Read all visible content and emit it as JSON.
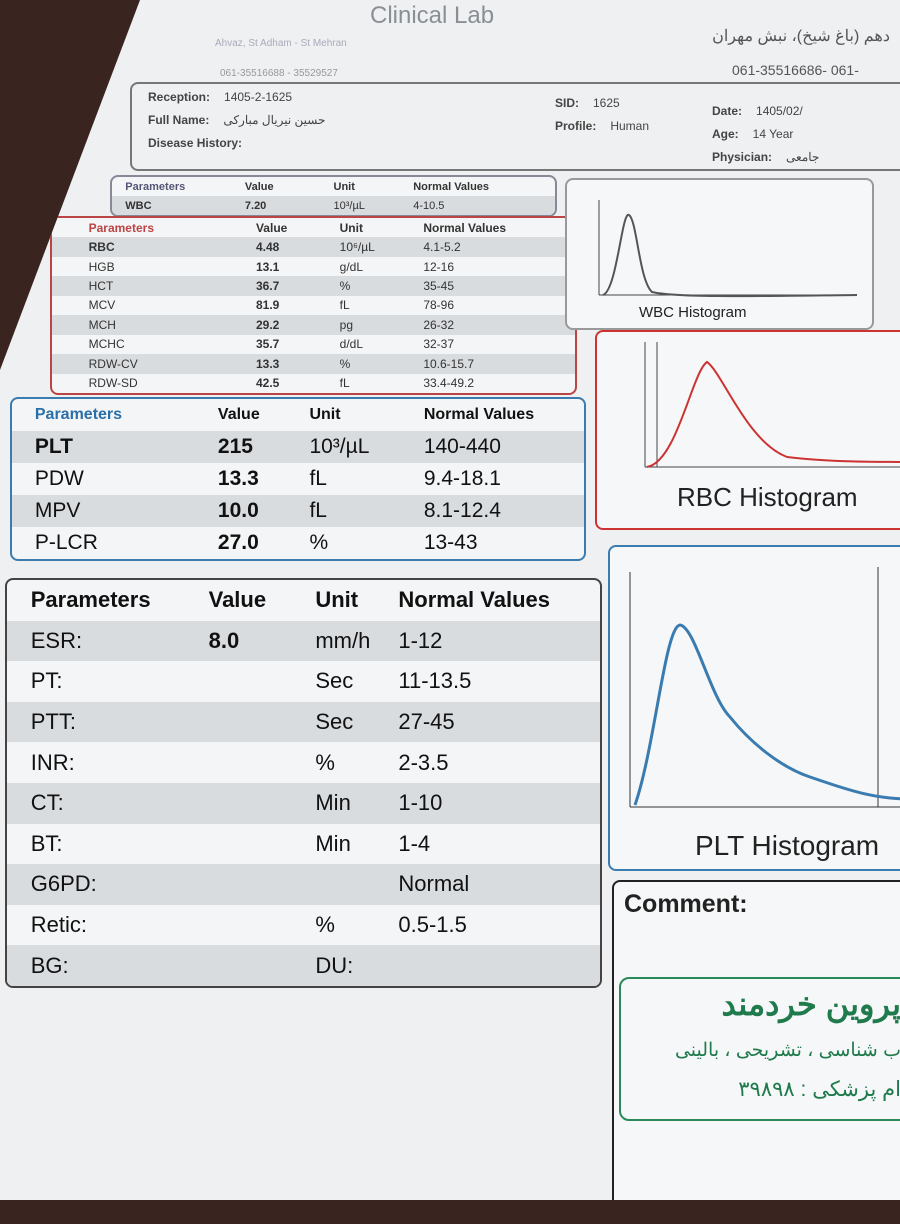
{
  "header": {
    "lab_name": "Clinical Lab",
    "address": "Ahvaz, St Adham - St Mehran",
    "phones": "061-35516688 - 35529527",
    "address_fa": "دهم (باغ شیخ)، نبش مهران",
    "phones_right": "061-35516686- 061-"
  },
  "patient": {
    "left": [
      {
        "label": "Reception:",
        "value": "1405-2-1625"
      },
      {
        "label": "Full Name:",
        "value": "حسین نیریال مبارکی"
      },
      {
        "label": "Disease History:"
      }
    ],
    "middle": [
      {
        "label": "SID:",
        "value": "1625"
      },
      {
        "label": "Profile:",
        "value": "Human"
      }
    ],
    "right": [
      {
        "label": "Date:",
        "value": "1405/02/"
      },
      {
        "label": "Age:",
        "value": "14 Year"
      },
      {
        "label": "Physician:",
        "value": "جامعی"
      }
    ]
  },
  "tables": [
    {
      "headers": [
        "Parameters",
        "Value",
        "Unit",
        "Normal Values"
      ],
      "rows": [
        [
          "WBC",
          "7.20",
          "10³/µL",
          "4-10.5"
        ]
      ]
    },
    {
      "headers": [
        "Parameters",
        "Value",
        "Unit",
        "Normal Values"
      ],
      "rows": [
        [
          "RBC",
          "4.48",
          "10⁶/µL",
          "4.1-5.2"
        ],
        [
          "HGB",
          "13.1",
          "g/dL",
          "12-16"
        ],
        [
          "HCT",
          "36.7",
          "%",
          "35-45"
        ],
        [
          "MCV",
          "81.9",
          "fL",
          "78-96"
        ],
        [
          "MCH",
          "29.2",
          "pg",
          "26-32"
        ],
        [
          "MCHC",
          "35.7",
          "d/dL",
          "32-37"
        ],
        [
          "RDW-CV",
          "13.3",
          "%",
          "10.6-15.7"
        ],
        [
          "RDW-SD",
          "42.5",
          "fL",
          "33.4-49.2"
        ]
      ]
    },
    {
      "headers": [
        "Parameters",
        "Value",
        "Unit",
        "Normal Values"
      ],
      "rows": [
        [
          "PLT",
          "215",
          "10³/µL",
          "140-440"
        ],
        [
          "PDW",
          "13.3",
          "fL",
          "9.4-18.1"
        ],
        [
          "MPV",
          "10.0",
          "fL",
          "8.1-12.4"
        ],
        [
          "P-LCR",
          "27.0",
          "%",
          "13-43"
        ]
      ]
    },
    {
      "headers": [
        "Parameters",
        "Value",
        "Unit",
        "Normal Values"
      ],
      "rows": [
        [
          "ESR:",
          "8.0",
          "mm/h",
          "1-12"
        ],
        [
          "PT:",
          null,
          "Sec",
          "11-13.5"
        ],
        [
          "PTT:",
          null,
          "Sec",
          "27-45"
        ],
        [
          "INR:",
          null,
          "%",
          "2-3.5"
        ],
        [
          "CT:",
          null,
          "Min",
          "1-10"
        ],
        [
          "BT:",
          null,
          "Min",
          "1-4"
        ],
        [
          "G6PD:",
          null,
          null,
          "Normal"
        ],
        [
          "Retic:",
          null,
          "%",
          "0.5-1.5"
        ],
        [
          "BG:",
          null,
          "DU:",
          null
        ]
      ]
    }
  ],
  "histograms": {
    "wbc": "WBC Histogram",
    "rbc": "RBC Histogram",
    "plt": "PLT Histogram"
  },
  "comment": {
    "label": "Comment:",
    "stamp_name": "پروین خردمند",
    "stamp_specialty": "ب شناسی ، تشریحی ، بالینی",
    "stamp_number": "ام پزشکی : ۳۹۸۹۸"
  }
}
